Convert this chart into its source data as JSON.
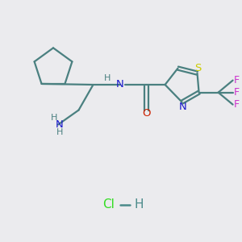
{
  "background_color": "#ebebee",
  "bond_color": "#4a8080",
  "atom_colors": {
    "N": "#1a1acc",
    "O": "#cc2200",
    "S": "#cccc00",
    "F": "#cc33cc",
    "H": "#4a8080",
    "Cl_green": "#33dd22",
    "H_grey": "#4a8a8a"
  },
  "figsize": [
    3.0,
    3.0
  ],
  "dpi": 100
}
